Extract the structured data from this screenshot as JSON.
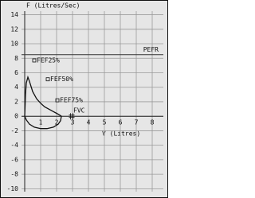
{
  "chart_data": {
    "type": "line",
    "y_label": "F (Litres/Sec)",
    "x_label": "V (Litres)",
    "xlim": [
      -0.2,
      8.7
    ],
    "ylim": [
      -10.4,
      14.5
    ],
    "xticks": [
      1,
      2,
      3,
      4,
      5,
      6,
      7,
      8
    ],
    "yticks": [
      14,
      12,
      10,
      8,
      6,
      4,
      2,
      0,
      -2,
      -4,
      -6,
      -8,
      -10
    ],
    "grid": true,
    "reference_line": {
      "label": "PEFR",
      "value": 8.5,
      "color": "#333333"
    },
    "series": [
      {
        "color": "#111111",
        "x": [
          0,
          0.05,
          0.1,
          0.2,
          0.3,
          0.5,
          0.75,
          1,
          1.25,
          1.5,
          1.75,
          2,
          2.2,
          2.3,
          2.25,
          2.1,
          1.8,
          1.4,
          1,
          0.6,
          0.3,
          0.1,
          0
        ],
        "values": [
          0,
          3,
          4.6,
          5.4,
          4.8,
          3.4,
          2.4,
          1.8,
          1.3,
          1,
          0.7,
          0.4,
          0.15,
          0,
          -0.6,
          -1.1,
          -1.5,
          -1.7,
          -1.7,
          -1.5,
          -1.1,
          -0.5,
          0
        ]
      }
    ],
    "annotations": [
      {
        "text": "FEF25%",
        "x": 0.6,
        "y": 7.7,
        "marker": "square"
      },
      {
        "text": "FEF50%",
        "x": 1.45,
        "y": 5.1,
        "marker": "square"
      },
      {
        "text": "FEF75%",
        "x": 2.05,
        "y": 2.2,
        "marker": "square"
      },
      {
        "text": "FVC",
        "x": 2.95,
        "y": 0,
        "marker": "hash"
      }
    ]
  }
}
